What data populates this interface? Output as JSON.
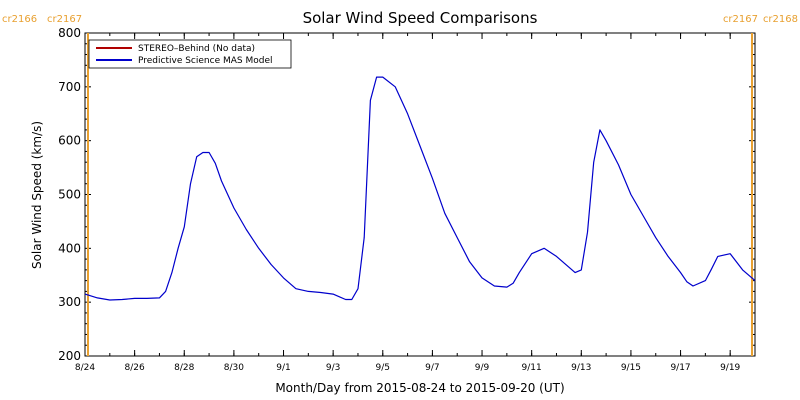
{
  "chart_data": {
    "type": "line",
    "title": "Solar Wind Speed Comparisons",
    "xlabel": "Month/Day from 2015-08-24 to 2015-09-20 (UT)",
    "ylabel": "Solar Wind Speed (km/s)",
    "xlim": [
      "2015-08-24",
      "2015-09-20"
    ],
    "ylim": [
      200,
      800
    ],
    "y_ticks": [
      200,
      300,
      400,
      500,
      600,
      700,
      800
    ],
    "x_ticks": [
      {
        "date": "2015-08-24",
        "label": "8/24"
      },
      {
        "date": "2015-08-26",
        "label": "8/26"
      },
      {
        "date": "2015-08-28",
        "label": "8/28"
      },
      {
        "date": "2015-08-30",
        "label": "8/30"
      },
      {
        "date": "2015-09-01",
        "label": "9/1"
      },
      {
        "date": "2015-09-03",
        "label": "9/3"
      },
      {
        "date": "2015-09-05",
        "label": "9/5"
      },
      {
        "date": "2015-09-07",
        "label": "9/7"
      },
      {
        "date": "2015-09-09",
        "label": "9/9"
      },
      {
        "date": "2015-09-11",
        "label": "9/11"
      },
      {
        "date": "2015-09-13",
        "label": "9/13"
      },
      {
        "date": "2015-09-15",
        "label": "9/15"
      },
      {
        "date": "2015-09-17",
        "label": "9/17"
      },
      {
        "date": "2015-09-19",
        "label": "9/19"
      }
    ],
    "grid": false,
    "legend_position": "top-left",
    "carrington_markers": {
      "left": {
        "date": "2015-08-24",
        "labels": [
          "cr2166",
          "cr2167"
        ]
      },
      "right": {
        "date": "2015-09-20",
        "labels": [
          "cr2167",
          "cr2168"
        ]
      },
      "color": "#e8a030"
    },
    "series": [
      {
        "name": "STEREO–Behind (No data)",
        "color": "#b00000",
        "x": [],
        "y": []
      },
      {
        "name": "Predictive Science MAS Model",
        "color": "#0000cc",
        "x": [
          "2015-08-24T00:00",
          "2015-08-24T12:00",
          "2015-08-25T00:00",
          "2015-08-25T12:00",
          "2015-08-26T00:00",
          "2015-08-26T12:00",
          "2015-08-27T00:00",
          "2015-08-27T06:00",
          "2015-08-27T12:00",
          "2015-08-27T18:00",
          "2015-08-28T00:00",
          "2015-08-28T06:00",
          "2015-08-28T12:00",
          "2015-08-28T18:00",
          "2015-08-29T00:00",
          "2015-08-29T06:00",
          "2015-08-29T12:00",
          "2015-08-30T00:00",
          "2015-08-30T12:00",
          "2015-08-31T00:00",
          "2015-08-31T12:00",
          "2015-09-01T00:00",
          "2015-09-01T12:00",
          "2015-09-02T00:00",
          "2015-09-02T12:00",
          "2015-09-03T00:00",
          "2015-09-03T06:00",
          "2015-09-03T12:00",
          "2015-09-03T18:00",
          "2015-09-04T00:00",
          "2015-09-04T06:00",
          "2015-09-04T12:00",
          "2015-09-04T18:00",
          "2015-09-05T00:00",
          "2015-09-05T12:00",
          "2015-09-06T00:00",
          "2015-09-06T12:00",
          "2015-09-07T00:00",
          "2015-09-07T12:00",
          "2015-09-08T00:00",
          "2015-09-08T12:00",
          "2015-09-09T00:00",
          "2015-09-09T12:00",
          "2015-09-10T00:00",
          "2015-09-10T06:00",
          "2015-09-10T12:00",
          "2015-09-11T00:00",
          "2015-09-11T12:00",
          "2015-09-12T00:00",
          "2015-09-12T12:00",
          "2015-09-12T18:00",
          "2015-09-13T00:00",
          "2015-09-13T06:00",
          "2015-09-13T12:00",
          "2015-09-13T18:00",
          "2015-09-14T00:00",
          "2015-09-14T12:00",
          "2015-09-15T00:00",
          "2015-09-15T12:00",
          "2015-09-16T00:00",
          "2015-09-16T12:00",
          "2015-09-17T00:00",
          "2015-09-17T06:00",
          "2015-09-17T12:00",
          "2015-09-18T00:00",
          "2015-09-18T06:00",
          "2015-09-18T12:00",
          "2015-09-19T00:00",
          "2015-09-19T12:00",
          "2015-09-20T00:00"
        ],
        "y": [
          315,
          308,
          304,
          305,
          307,
          307,
          308,
          320,
          355,
          400,
          440,
          520,
          570,
          578,
          578,
          558,
          525,
          475,
          435,
          400,
          370,
          345,
          325,
          320,
          318,
          315,
          310,
          305,
          305,
          325,
          420,
          675,
          718,
          718,
          700,
          650,
          590,
          530,
          465,
          420,
          375,
          345,
          330,
          328,
          335,
          355,
          390,
          400,
          385,
          365,
          355,
          360,
          430,
          560,
          620,
          600,
          555,
          500,
          460,
          420,
          385,
          355,
          338,
          330,
          340,
          362,
          385,
          390,
          360,
          340
        ]
      }
    ]
  }
}
